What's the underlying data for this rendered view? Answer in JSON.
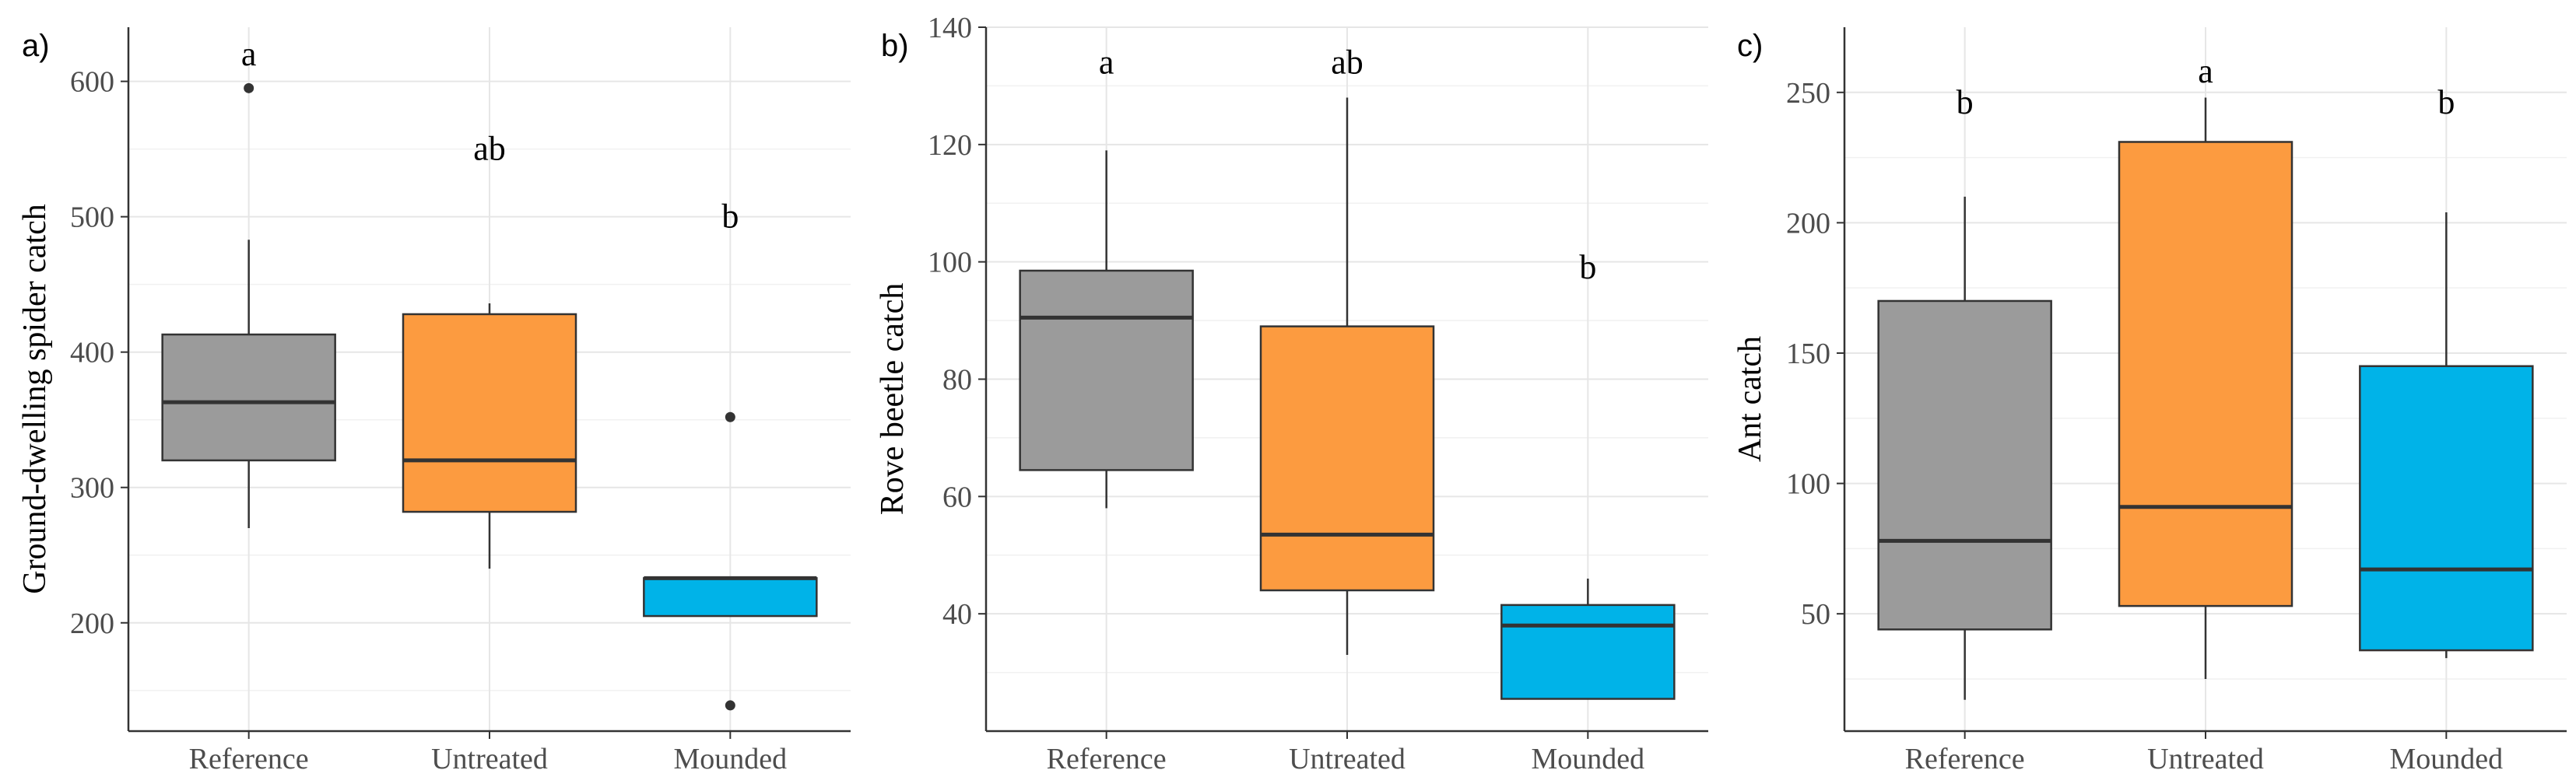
{
  "figure": {
    "colors": {
      "Reference": "#9b9b9b",
      "Untreated": "#fc9b40",
      "Mounded": "#00b3e8"
    }
  },
  "chart_data": [
    {
      "type": "box",
      "panel_label": "a)",
      "ylabel": "Ground-dwelling spider catch",
      "ylim": [
        120,
        640
      ],
      "major_ticks": [
        200,
        300,
        400,
        500,
        600
      ],
      "minor_ticks": [
        150,
        250,
        350,
        450,
        550
      ],
      "grid": true,
      "categories": [
        "Reference",
        "Untreated",
        "Mounded"
      ],
      "boxes": [
        {
          "category": "Reference",
          "whisker_low": 270,
          "q1": 320,
          "median": 363,
          "q3": 413,
          "whisker_high": 483,
          "outliers": [
            595
          ],
          "letter": "a",
          "letter_y": 620
        },
        {
          "category": "Untreated",
          "whisker_low": 240,
          "q1": 282,
          "median": 320,
          "q3": 428,
          "whisker_high": 436,
          "outliers": [],
          "letter": "ab",
          "letter_y": 550
        },
        {
          "category": "Mounded",
          "whisker_low": 205,
          "q1": 205,
          "median": 233,
          "q3": 233,
          "whisker_high": 233,
          "outliers": [
            352,
            139
          ],
          "letter": "b",
          "letter_y": 500
        }
      ]
    },
    {
      "type": "box",
      "panel_label": "b)",
      "ylabel": "Rove beetle catch",
      "ylim": [
        20,
        140
      ],
      "major_ticks": [
        40,
        60,
        80,
        100,
        120,
        140
      ],
      "minor_ticks": [
        30,
        50,
        70,
        90,
        110,
        130
      ],
      "grid": true,
      "categories": [
        "Reference",
        "Untreated",
        "Mounded"
      ],
      "boxes": [
        {
          "category": "Reference",
          "whisker_low": 58,
          "q1": 64.5,
          "median": 90.5,
          "q3": 98.5,
          "whisker_high": 119,
          "outliers": [],
          "letter": "a",
          "letter_y": 134
        },
        {
          "category": "Untreated",
          "whisker_low": 33,
          "q1": 44,
          "median": 53.5,
          "q3": 89,
          "whisker_high": 128,
          "outliers": [],
          "letter": "ab",
          "letter_y": 134
        },
        {
          "category": "Mounded",
          "whisker_low": 25.5,
          "q1": 25.5,
          "median": 38,
          "q3": 41.5,
          "whisker_high": 46,
          "outliers": [],
          "letter": "b",
          "letter_y": 99
        }
      ]
    },
    {
      "type": "box",
      "panel_label": "c)",
      "ylabel": "Ant catch",
      "ylim": [
        5,
        275
      ],
      "major_ticks": [
        50,
        100,
        150,
        200,
        250
      ],
      "minor_ticks": [
        25,
        75,
        125,
        175,
        225,
        275
      ],
      "grid": true,
      "categories": [
        "Reference",
        "Untreated",
        "Mounded"
      ],
      "boxes": [
        {
          "category": "Reference",
          "whisker_low": 17,
          "q1": 44,
          "median": 78,
          "q3": 170,
          "whisker_high": 210,
          "outliers": [],
          "letter": "b",
          "letter_y": 246
        },
        {
          "category": "Untreated",
          "whisker_low": 25,
          "q1": 53,
          "median": 91,
          "q3": 231,
          "whisker_high": 248,
          "outliers": [],
          "letter": "a",
          "letter_y": 258
        },
        {
          "category": "Mounded",
          "whisker_low": 33,
          "q1": 36,
          "median": 67,
          "q3": 145,
          "whisker_high": 204,
          "outliers": [],
          "letter": "b",
          "letter_y": 246
        }
      ]
    }
  ]
}
